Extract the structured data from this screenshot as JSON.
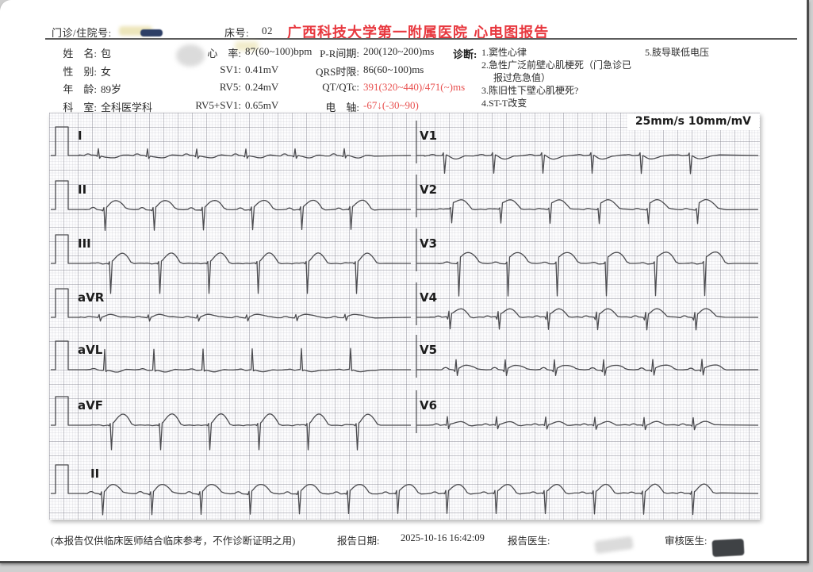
{
  "header": {
    "exam_no_label": "门诊/住院号:",
    "bed_label": "床号:",
    "bed_value": "02",
    "title": "广西科技大学第一附属医院 心电图报告"
  },
  "colors": {
    "title_red": "#e8383f",
    "alert_red": "#e8504f",
    "trace": "#4b4b4f"
  },
  "patient": [
    {
      "label": "姓　名:",
      "value": "包"
    },
    {
      "label": "性　别:",
      "value": "女"
    },
    {
      "label": "年　龄:",
      "value": "89岁"
    },
    {
      "label": "科　室:",
      "value": "全科医学科"
    }
  ],
  "measurements": [
    {
      "label": "心　率:",
      "value": "87(60~100)bpm"
    },
    {
      "label": "SV1:",
      "value": "0.41mV"
    },
    {
      "label": "RV5:",
      "value": "0.24mV"
    },
    {
      "label": "RV5+SV1:",
      "value": "0.65mV"
    }
  ],
  "intervals": [
    {
      "label": "P-R间期:",
      "value": "200(120~200)ms",
      "alert": false
    },
    {
      "label": "QRS时限:",
      "value": "86(60~100)ms",
      "alert": false
    },
    {
      "label": "QT/QTc:",
      "value": "391(320~440)/471(~)ms",
      "alert": true
    },
    {
      "label": "电　轴:",
      "value": "-67↓(-30~90)",
      "alert": true
    }
  ],
  "diagnosis": {
    "label": "诊断:",
    "items": [
      "1.窦性心律",
      "2.急性广泛前壁心肌梗死（门急诊已报过危急值）",
      "3.陈旧性下壁心肌梗死?",
      "4.ST-T改变"
    ],
    "items_col2": [
      "5.肢导联低电压"
    ]
  },
  "ecg": {
    "scale_label": "25mm/s 10mm/mV",
    "left_leads": [
      "I",
      "II",
      "III",
      "aVR",
      "aVL",
      "aVF"
    ],
    "right_leads": [
      "V1",
      "V2",
      "V3",
      "V4",
      "V5",
      "V6"
    ],
    "rhythm_lead": "II",
    "waveforms": {
      "I": {
        "p": 2,
        "q": 1,
        "r": 9,
        "s": 3,
        "st": 0,
        "t": -3
      },
      "II": {
        "p": 2,
        "q": 1,
        "r": 3,
        "s": 26,
        "st": 3,
        "t": 10
      },
      "III": {
        "p": 1,
        "q": 1,
        "r": 2,
        "s": 38,
        "st": 3,
        "t": 11
      },
      "aVR": {
        "p": 1,
        "q": 0,
        "r": 4,
        "s": 4,
        "st": 1,
        "t": 3
      },
      "aVL": {
        "p": 1,
        "q": 0,
        "r": 26,
        "s": 2,
        "st": -1,
        "t": -2
      },
      "aVF": {
        "p": 1,
        "q": 1,
        "r": 2,
        "s": 31,
        "st": 3,
        "t": 12
      },
      "V1": {
        "p": 1,
        "q": 0,
        "r": 3,
        "s": 23,
        "st": 0,
        "t": -4
      },
      "V2": {
        "p": 1,
        "q": 0,
        "r": 2,
        "s": 17,
        "st": 9,
        "t": 7
      },
      "V3": {
        "p": 1,
        "q": 0,
        "r": 2,
        "s": 41,
        "st": 8,
        "t": 10
      },
      "V4": {
        "p": 2,
        "q": 3,
        "r": 7,
        "s": 15,
        "st": 5,
        "t": 8
      },
      "V5": {
        "p": 2,
        "q": 2,
        "r": 13,
        "s": 7,
        "st": 2,
        "t": 5
      },
      "V6": {
        "p": 2,
        "q": 1,
        "r": 10,
        "s": 5,
        "st": 1,
        "t": 4
      }
    }
  },
  "footer": {
    "disclaimer": "(本报告仅供临床医师结合临床参考，不作诊断证明之用)",
    "report_date_label": "报告日期:",
    "report_date": "2025-10-16 16:42:09",
    "report_doctor_label": "报告医生:",
    "review_doctor_label": "审核医生:"
  }
}
